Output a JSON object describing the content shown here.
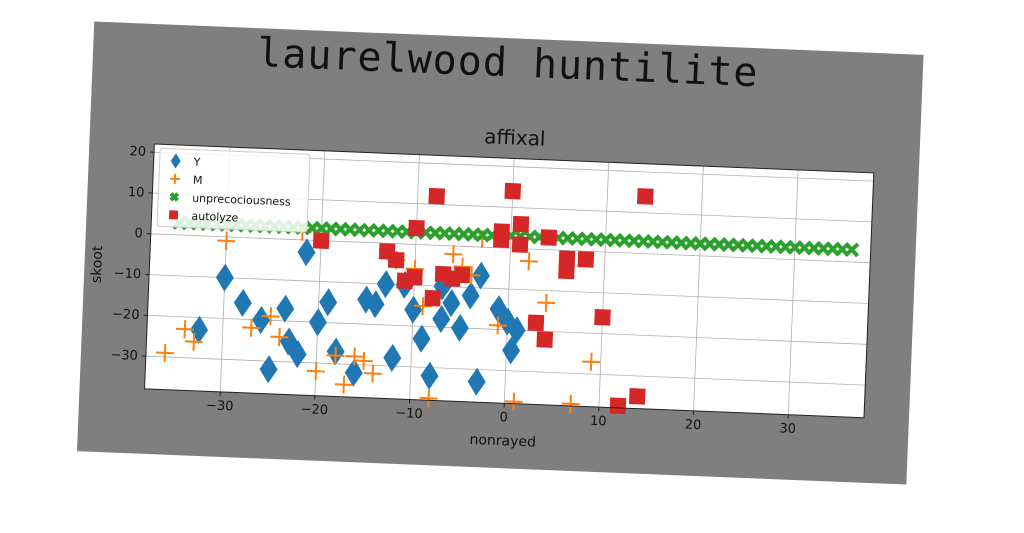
{
  "figure": {
    "suptitle": "laurelwood huntilite",
    "background_color": "#7f7f7f"
  },
  "chart_data": {
    "type": "scatter",
    "title": "affixal",
    "xlabel": "nonrayed",
    "ylabel": "skoot",
    "xlim": [
      -38,
      38
    ],
    "ylim": [
      -38,
      22
    ],
    "xticks": [
      -30,
      -20,
      -10,
      0,
      10,
      20,
      30
    ],
    "yticks": [
      -30,
      -20,
      -10,
      0,
      10,
      20
    ],
    "xtick_labels": [
      "−30",
      "−20",
      "−10",
      "0",
      "10",
      "20",
      "30"
    ],
    "ytick_labels": [
      "−30",
      "−20",
      "−10",
      "0",
      "10",
      "20"
    ],
    "grid": true,
    "legend_position": "top-left",
    "series": [
      {
        "name": "Y",
        "marker": "diamond",
        "color": "#1f77b4",
        "points": [
          [
            -30,
            -10
          ],
          [
            -32.5,
            -23
          ],
          [
            -28,
            -16
          ],
          [
            -26,
            -20
          ],
          [
            -25,
            -32
          ],
          [
            -23.5,
            -17
          ],
          [
            -23,
            -25
          ],
          [
            -22,
            -28
          ],
          [
            -21.5,
            -3
          ],
          [
            -20,
            -20
          ],
          [
            -19,
            -15
          ],
          [
            -18,
            -27
          ],
          [
            -16,
            -32
          ],
          [
            -15,
            -14
          ],
          [
            -14,
            -15
          ],
          [
            -13,
            -10
          ],
          [
            -12,
            -28
          ],
          [
            -11,
            -10
          ],
          [
            -10,
            -16
          ],
          [
            -9,
            -23
          ],
          [
            -8,
            -32
          ],
          [
            -7,
            -10
          ],
          [
            -7,
            -18
          ],
          [
            -6,
            -14
          ],
          [
            -5,
            -20
          ],
          [
            -4,
            -12
          ],
          [
            -3,
            -7
          ],
          [
            -3,
            -33
          ],
          [
            -1,
            -15
          ],
          [
            0,
            -18
          ],
          [
            0.5,
            -25
          ],
          [
            1,
            -20
          ]
        ]
      },
      {
        "name": "M",
        "marker": "plus",
        "color": "#ff7f0e",
        "points": [
          [
            -36,
            -29
          ],
          [
            -34,
            -23
          ],
          [
            -33,
            -26
          ],
          [
            -30,
            -1
          ],
          [
            -27,
            -22
          ],
          [
            -25,
            -19
          ],
          [
            -24,
            -24
          ],
          [
            -22,
            2
          ],
          [
            -20,
            -32
          ],
          [
            -18,
            -28
          ],
          [
            -17,
            -35
          ],
          [
            -16,
            -28
          ],
          [
            -15,
            -29
          ],
          [
            -14,
            -32
          ],
          [
            -12,
            -4
          ],
          [
            -10,
            -6
          ],
          [
            -9,
            -15
          ],
          [
            -8,
            -38
          ],
          [
            -6,
            -2
          ],
          [
            -5,
            -5
          ],
          [
            -4,
            -7
          ],
          [
            -3,
            2
          ],
          [
            -1,
            -19
          ],
          [
            1,
            -38
          ],
          [
            2,
            -3
          ],
          [
            4,
            -13
          ],
          [
            7,
            -38
          ],
          [
            9,
            -27
          ]
        ]
      },
      {
        "name": "unprecociousness",
        "marker": "x",
        "color": "#2ca02c",
        "points": [
          [
            -35,
            3
          ],
          [
            -34,
            3
          ],
          [
            -33,
            3
          ],
          [
            -32,
            3
          ],
          [
            -31,
            3
          ],
          [
            -30,
            3
          ],
          [
            -29,
            3
          ],
          [
            -28,
            3
          ],
          [
            -27,
            3
          ],
          [
            -26,
            3
          ],
          [
            -25,
            3
          ],
          [
            -24,
            3
          ],
          [
            -23,
            3
          ],
          [
            -22,
            3
          ],
          [
            -21,
            3
          ],
          [
            -20,
            3
          ],
          [
            -19,
            3
          ],
          [
            -18,
            3
          ],
          [
            -17,
            3
          ],
          [
            -16,
            3
          ],
          [
            -15,
            3
          ],
          [
            -14,
            3
          ],
          [
            -13,
            3
          ],
          [
            -12,
            3
          ],
          [
            -11,
            3
          ],
          [
            -10,
            3
          ],
          [
            -9,
            3
          ],
          [
            -8,
            3
          ],
          [
            -7,
            3
          ],
          [
            -6,
            3
          ],
          [
            -5,
            3
          ],
          [
            -4,
            3
          ],
          [
            -3,
            3
          ],
          [
            -2,
            3
          ],
          [
            -1,
            3
          ],
          [
            0,
            3
          ],
          [
            1,
            3
          ],
          [
            2,
            3
          ],
          [
            3,
            3
          ],
          [
            4,
            3
          ],
          [
            5,
            3
          ],
          [
            6,
            3
          ],
          [
            7,
            3
          ],
          [
            8,
            3
          ],
          [
            9,
            3
          ],
          [
            10,
            3
          ],
          [
            11,
            3
          ],
          [
            12,
            3
          ],
          [
            13,
            3
          ],
          [
            14,
            3
          ],
          [
            15,
            3
          ],
          [
            16,
            3
          ],
          [
            17,
            3
          ],
          [
            18,
            3
          ],
          [
            19,
            3
          ],
          [
            20,
            3
          ],
          [
            21,
            3
          ],
          [
            22,
            3
          ],
          [
            23,
            3
          ],
          [
            24,
            3
          ],
          [
            25,
            3
          ],
          [
            26,
            3
          ],
          [
            27,
            3
          ],
          [
            28,
            3
          ],
          [
            29,
            3
          ],
          [
            30,
            3
          ],
          [
            31,
            3
          ],
          [
            32,
            3
          ],
          [
            33,
            3
          ],
          [
            34,
            3
          ],
          [
            35,
            3
          ],
          [
            36,
            3
          ]
        ]
      },
      {
        "name": "autolyze",
        "marker": "square",
        "color": "#d62728",
        "points": [
          [
            -20,
            0
          ],
          [
            -13,
            -2
          ],
          [
            -12,
            -4
          ],
          [
            -11,
            -9
          ],
          [
            -10,
            -8
          ],
          [
            -10,
            4
          ],
          [
            -8,
            12
          ],
          [
            -8,
            -13
          ],
          [
            -7,
            -7
          ],
          [
            -6,
            -8
          ],
          [
            -5,
            -7
          ],
          [
            -1,
            2
          ],
          [
            -1,
            4
          ],
          [
            0,
            14
          ],
          [
            1,
            1
          ],
          [
            1,
            6
          ],
          [
            3,
            -18
          ],
          [
            4,
            -22
          ],
          [
            4,
            3
          ],
          [
            6,
            -5
          ],
          [
            6,
            -2
          ],
          [
            8,
            -2
          ],
          [
            10,
            -16
          ],
          [
            14,
            -35
          ],
          [
            14,
            14
          ],
          [
            12,
            -42
          ]
        ]
      }
    ]
  }
}
